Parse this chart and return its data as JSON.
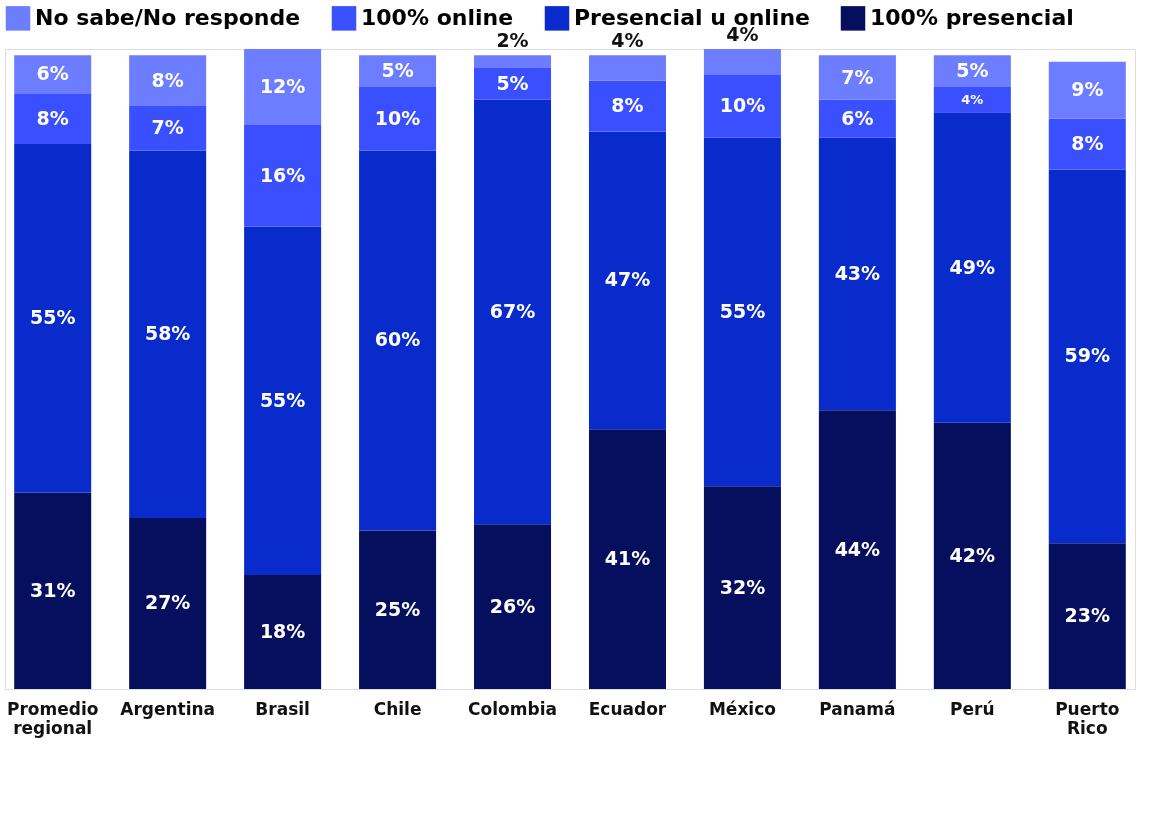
{
  "chart_data": {
    "type": "bar",
    "stacked": true,
    "legend": "top",
    "grid": false,
    "categories": [
      "Promedio regional",
      "Argentina",
      "Brasil",
      "Chile",
      "Colombia",
      "Ecuador",
      "México",
      "Panamá",
      "Perú",
      "Puerto Rico"
    ],
    "series": [
      {
        "name": "100% presencial",
        "color": "#050f5e",
        "values": [
          31,
          27,
          18,
          25,
          26,
          41,
          32,
          44,
          42,
          23
        ],
        "value_labels": [
          "31%",
          "27%",
          "18%",
          "25%",
          "26%",
          "41%",
          "32%",
          "44%",
          "42%",
          "23%"
        ]
      },
      {
        "name": "Presencial u online",
        "color": "#0a2bcc",
        "values": [
          55,
          58,
          55,
          60,
          67,
          47,
          55,
          43,
          49,
          59
        ],
        "value_labels": [
          "55%",
          "58%",
          "55%",
          "60%",
          "67%",
          "47%",
          "55%",
          "43%",
          "49%",
          "59%"
        ]
      },
      {
        "name": "100% online",
        "color": "#3a50ff",
        "values": [
          8,
          7,
          16,
          10,
          5,
          8,
          10,
          6,
          4,
          8
        ],
        "value_labels": [
          "8%",
          "7%",
          "16%",
          "10%",
          "5%",
          "8%",
          "10%",
          "6%",
          "4%",
          "8%"
        ]
      },
      {
        "name": "No sabe/No responde",
        "color": "#6d7dff",
        "values": [
          6,
          8,
          12,
          5,
          2,
          4,
          4,
          7,
          5,
          9
        ],
        "value_labels": [
          "6%",
          "8%",
          "12%",
          "5%",
          "2%",
          "4%",
          "4%",
          "7%",
          "5%",
          "9%"
        ]
      }
    ]
  }
}
